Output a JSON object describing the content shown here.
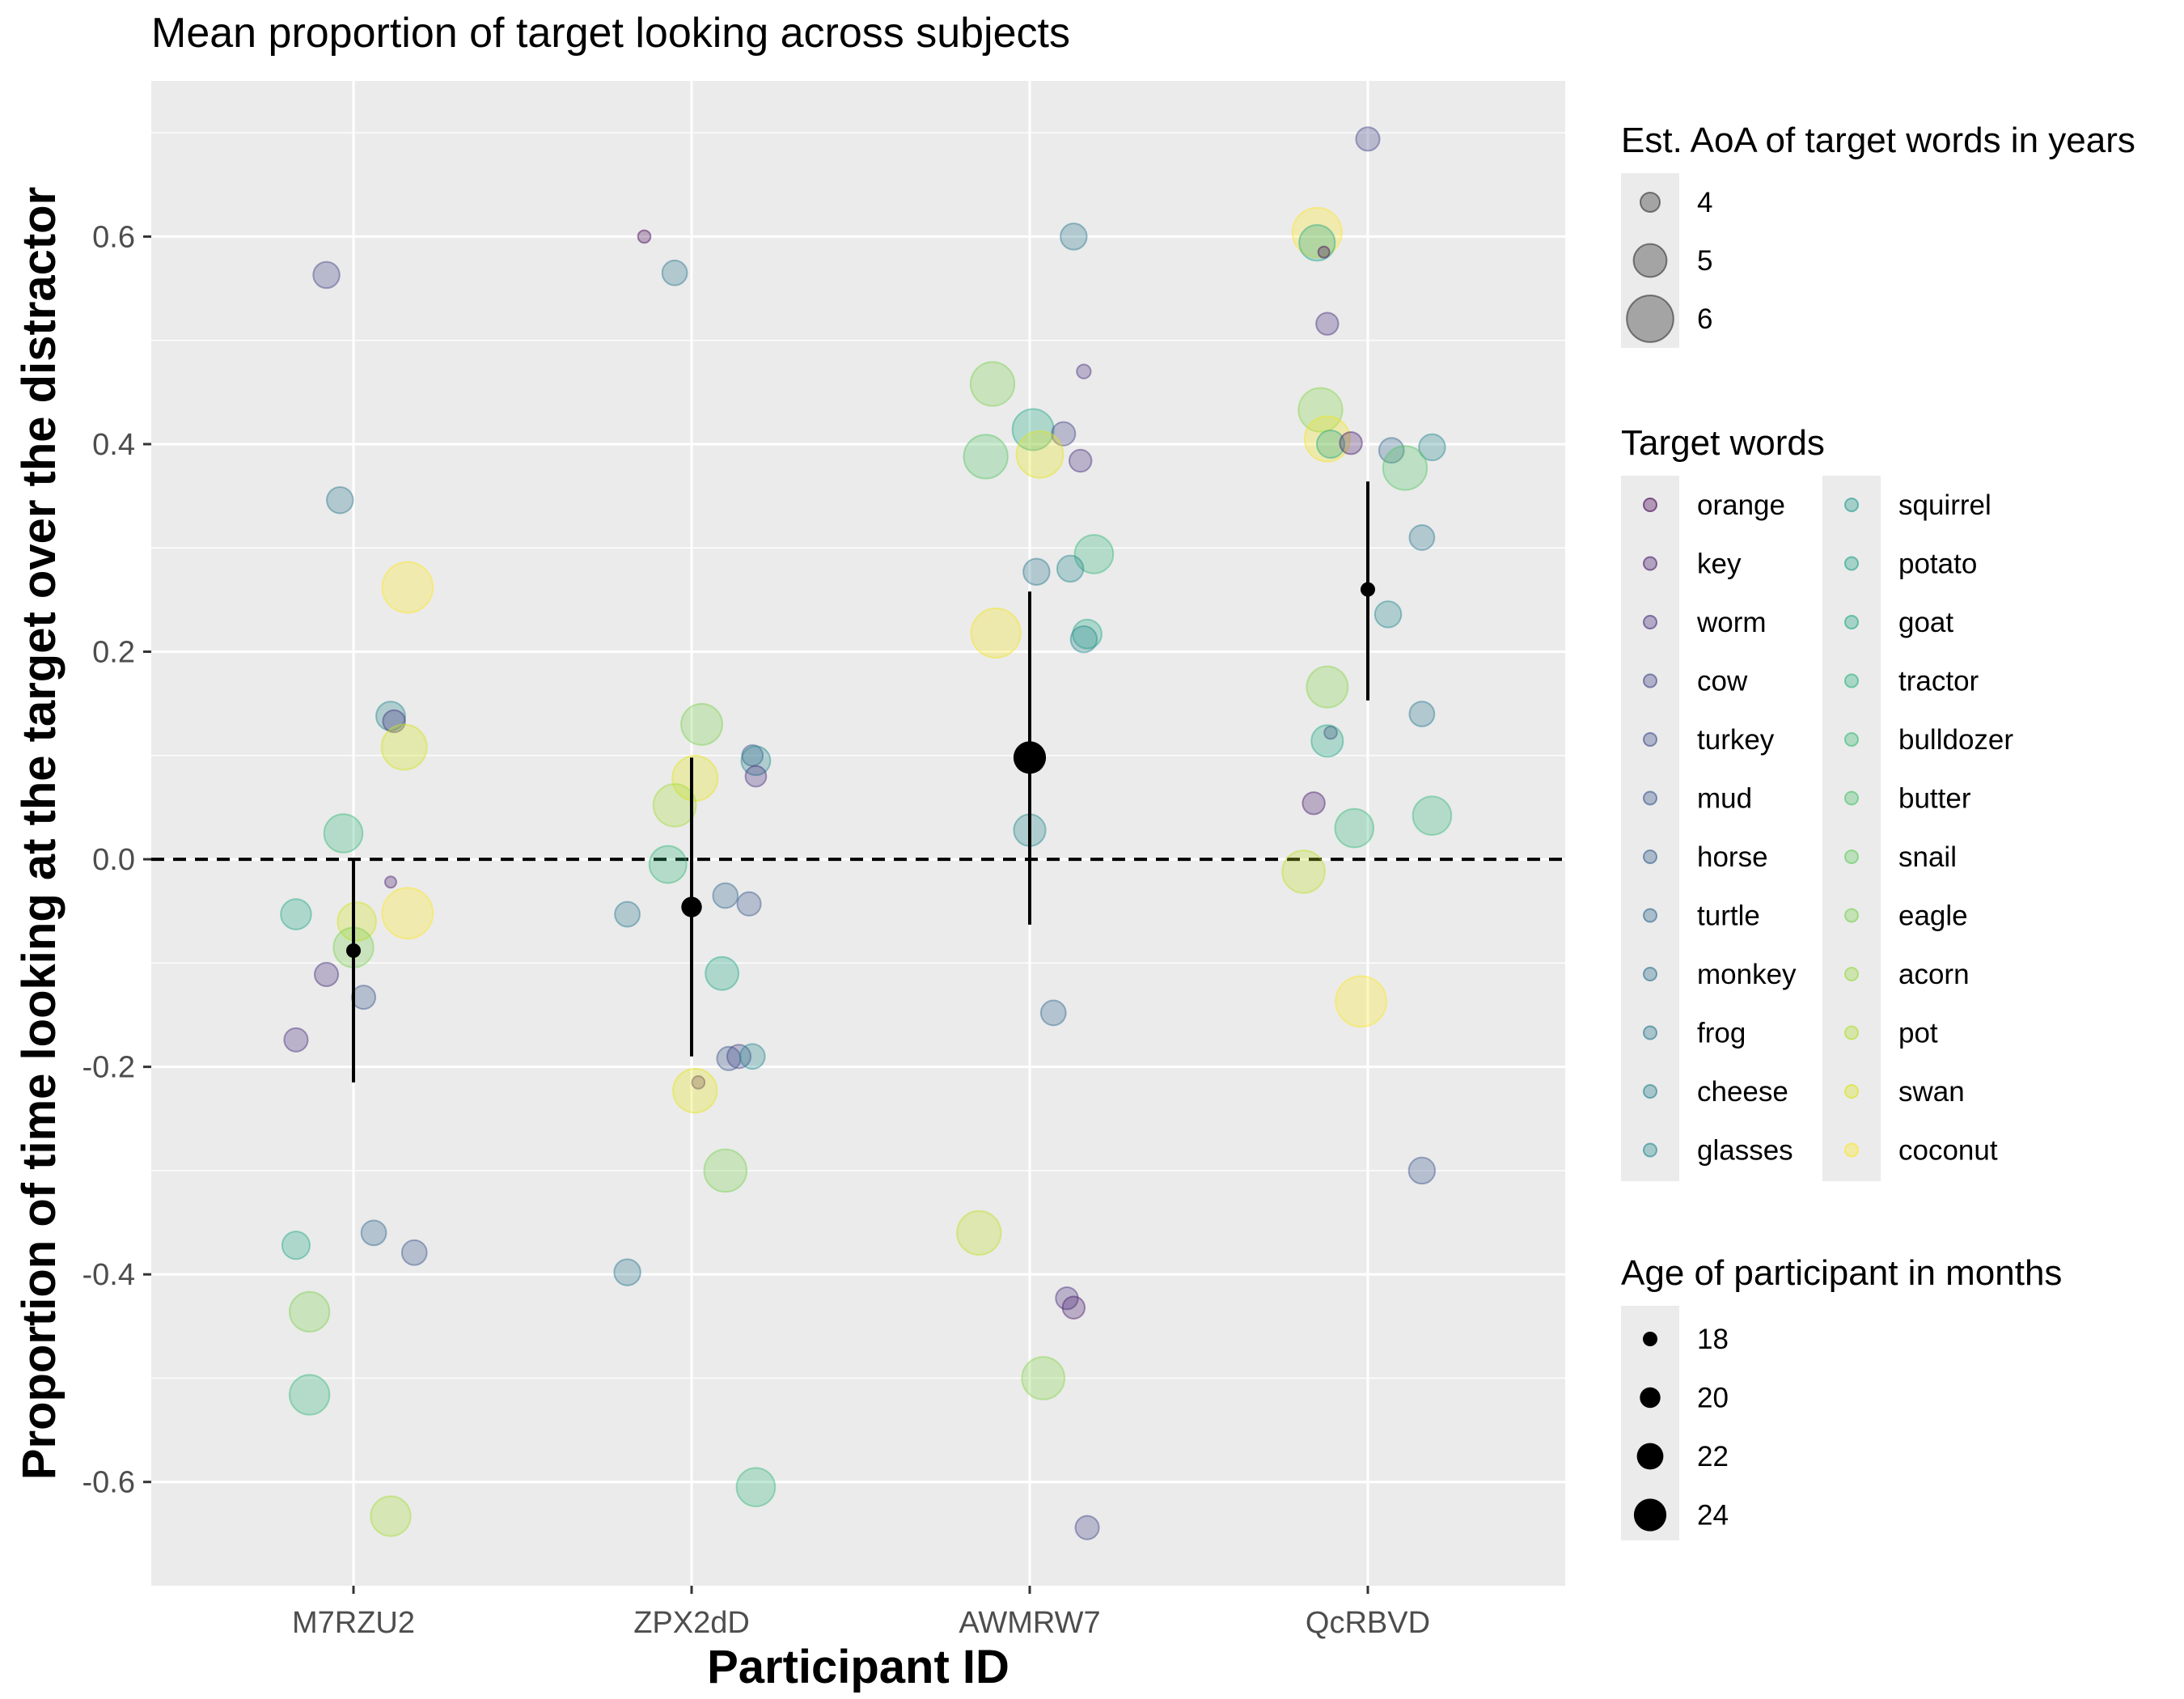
{
  "chart_data": {
    "type": "scatter",
    "title": "Mean proportion of target looking across subjects",
    "xlabel": "Participant ID",
    "ylabel": "Proportion of time looking at the target over the distractor",
    "categories": [
      "M7RZU2",
      "ZPX2dD",
      "AWMRW7",
      "QcRBVD"
    ],
    "ylim": [
      -0.7,
      0.75
    ],
    "yticks": [
      -0.6,
      -0.4,
      -0.2,
      0.0,
      0.2,
      0.4,
      0.6
    ],
    "ytick_labels": [
      "-0.6",
      "-0.4",
      "-0.2",
      "0.0",
      "0.2",
      "0.4",
      "0.6"
    ],
    "reference_line": {
      "y": 0,
      "style": "dashed"
    },
    "grid": true,
    "legend_position": "right",
    "word_colors": {
      "orange": "#440154",
      "key": "#481a6c",
      "worm": "#472f7d",
      "cow": "#414487",
      "turkey": "#39568c",
      "mud": "#31688e",
      "horse": "#2a788e",
      "turtle": "#23888e",
      "monkey": "#1f988b",
      "frog": "#22a884",
      "cheese": "#35b779",
      "glasses": "#54c568",
      "squirrel": "#7ad151",
      "potato": "#a5db36",
      "goat": "#d2e21b",
      "tractor": "#fde725",
      "bulldozer": "#7ad151",
      "butter": "#86d549",
      "snail": "#a5db36",
      "eagle": "#bddf26",
      "acorn": "#d2e21b",
      "pot": "#e5e419",
      "swan": "#f2e51d",
      "coconut": "#fde725"
    },
    "legends": {
      "aoa": {
        "title": "Est. AoA of target words in years",
        "values": [
          4,
          5,
          6
        ],
        "labels": [
          "4",
          "5",
          "6"
        ]
      },
      "words": {
        "title": "Target words",
        "col1": [
          "orange",
          "key",
          "worm",
          "cow",
          "turkey",
          "mud",
          "horse",
          "turtle",
          "monkey",
          "frog",
          "cheese",
          "glasses"
        ],
        "col1_colors": [
          "#440154",
          "#481a6c",
          "#472f7d",
          "#414487",
          "#3d4d8a",
          "#39568c",
          "#355f8d",
          "#31688e",
          "#2d708e",
          "#2a788e",
          "#26828e",
          "#23898e"
        ],
        "col2": [
          "squirrel",
          "potato",
          "goat",
          "tractor",
          "bulldozer",
          "butter",
          "snail",
          "eagle",
          "acorn",
          "pot",
          "swan",
          "coconut"
        ],
        "col2_colors": [
          "#1f9a8a",
          "#1fa187",
          "#22a884",
          "#2db27d",
          "#3bbb75",
          "#4ac16d",
          "#60ca60",
          "#7ad151",
          "#95d840",
          "#b0dd2f",
          "#d8e219",
          "#fde725"
        ]
      },
      "age": {
        "title": "Age of participant in months",
        "values": [
          18,
          20,
          22,
          24
        ],
        "labels": [
          "18",
          "20",
          "22",
          "24"
        ]
      }
    },
    "participants": [
      {
        "id": "M7RZU2",
        "mean": -0.088,
        "ymin": -0.215,
        "ymax": 0.0,
        "age_months": 18
      },
      {
        "id": "ZPX2dD",
        "mean": -0.046,
        "ymin": -0.19,
        "ymax": 0.098,
        "age_months": 20
      },
      {
        "id": "AWMRW7",
        "mean": 0.098,
        "ymin": -0.063,
        "ymax": 0.258,
        "age_months": 24
      },
      {
        "id": "QcRBVD",
        "mean": 0.26,
        "ymin": 0.153,
        "ymax": 0.364,
        "age_months": 18
      }
    ],
    "points": [
      {
        "p": 0,
        "dx": -0.08,
        "y": 0.563,
        "aoa": 4.6,
        "c": "#414487"
      },
      {
        "p": 0,
        "dx": -0.04,
        "y": 0.346,
        "aoa": 4.6,
        "c": "#2a788e"
      },
      {
        "p": 0,
        "dx": 0.16,
        "y": 0.262,
        "aoa": 6.4,
        "c": "#fde725"
      },
      {
        "p": 0,
        "dx": 0.11,
        "y": 0.138,
        "aoa": 4.8,
        "c": "#23888e"
      },
      {
        "p": 0,
        "dx": 0.12,
        "y": 0.133,
        "aoa": 4.3,
        "c": "#472f7d"
      },
      {
        "p": 0,
        "dx": 0.15,
        "y": 0.108,
        "aoa": 6.0,
        "c": "#d2e21b"
      },
      {
        "p": 0,
        "dx": -0.03,
        "y": 0.025,
        "aoa": 5.5,
        "c": "#35b779"
      },
      {
        "p": 0,
        "dx": 0.11,
        "y": -0.022,
        "aoa": 3.5,
        "c": "#481a6c"
      },
      {
        "p": 0,
        "dx": -0.17,
        "y": -0.053,
        "aoa": 4.9,
        "c": "#22a884"
      },
      {
        "p": 0,
        "dx": 0.16,
        "y": -0.052,
        "aoa": 6.4,
        "c": "#fde725"
      },
      {
        "p": 0,
        "dx": 0.01,
        "y": -0.06,
        "aoa": 5.5,
        "c": "#d2e21b"
      },
      {
        "p": 0,
        "dx": 0.0,
        "y": -0.085,
        "aoa": 5.6,
        "c": "#7ad151"
      },
      {
        "p": 0,
        "dx": -0.08,
        "y": -0.111,
        "aoa": 4.4,
        "c": "#472f7d"
      },
      {
        "p": 0,
        "dx": 0.03,
        "y": -0.133,
        "aoa": 4.4,
        "c": "#39568c"
      },
      {
        "p": 0,
        "dx": -0.17,
        "y": -0.174,
        "aoa": 4.4,
        "c": "#472f7d"
      },
      {
        "p": 0,
        "dx": 0.06,
        "y": -0.36,
        "aoa": 4.5,
        "c": "#31688e"
      },
      {
        "p": 0,
        "dx": 0.18,
        "y": -0.379,
        "aoa": 4.5,
        "c": "#39568c"
      },
      {
        "p": 0,
        "dx": -0.17,
        "y": -0.372,
        "aoa": 4.7,
        "c": "#22a884"
      },
      {
        "p": 0,
        "dx": -0.13,
        "y": -0.436,
        "aoa": 5.6,
        "c": "#7ad151"
      },
      {
        "p": 0,
        "dx": -0.13,
        "y": -0.516,
        "aoa": 5.6,
        "c": "#35b779"
      },
      {
        "p": 0,
        "dx": 0.11,
        "y": -0.633,
        "aoa": 5.6,
        "c": "#a5db36"
      },
      {
        "p": 1,
        "dx": -0.14,
        "y": 0.6,
        "aoa": 3.6,
        "c": "#440154"
      },
      {
        "p": 1,
        "dx": -0.05,
        "y": 0.565,
        "aoa": 4.5,
        "c": "#2a788e"
      },
      {
        "p": 1,
        "dx": 0.03,
        "y": 0.13,
        "aoa": 5.7,
        "c": "#7ad151"
      },
      {
        "p": 1,
        "dx": 0.18,
        "y": 0.1,
        "aoa": 4.2,
        "c": "#39568c"
      },
      {
        "p": 1,
        "dx": 0.19,
        "y": 0.095,
        "aoa": 4.8,
        "c": "#23888e"
      },
      {
        "p": 1,
        "dx": 0.19,
        "y": 0.08,
        "aoa": 4.2,
        "c": "#472f7d"
      },
      {
        "p": 1,
        "dx": 0.01,
        "y": 0.078,
        "aoa": 6.0,
        "c": "#e5e419"
      },
      {
        "p": 1,
        "dx": -0.05,
        "y": 0.052,
        "aoa": 5.8,
        "c": "#a5db36"
      },
      {
        "p": 1,
        "dx": -0.07,
        "y": -0.005,
        "aoa": 5.4,
        "c": "#35b779"
      },
      {
        "p": 1,
        "dx": -0.19,
        "y": -0.053,
        "aoa": 4.5,
        "c": "#2a788e"
      },
      {
        "p": 1,
        "dx": 0.1,
        "y": -0.035,
        "aoa": 4.5,
        "c": "#31688e"
      },
      {
        "p": 1,
        "dx": 0.17,
        "y": -0.043,
        "aoa": 4.4,
        "c": "#39568c"
      },
      {
        "p": 1,
        "dx": 0.09,
        "y": -0.11,
        "aoa": 5.1,
        "c": "#22a884"
      },
      {
        "p": 1,
        "dx": 0.11,
        "y": -0.192,
        "aoa": 4.4,
        "c": "#39568c"
      },
      {
        "p": 1,
        "dx": 0.14,
        "y": -0.19,
        "aoa": 4.4,
        "c": "#414487"
      },
      {
        "p": 1,
        "dx": 0.18,
        "y": -0.19,
        "aoa": 4.5,
        "c": "#23888e"
      },
      {
        "p": 1,
        "dx": 0.02,
        "y": -0.215,
        "aoa": 3.6,
        "c": "#481a6c"
      },
      {
        "p": 1,
        "dx": 0.01,
        "y": -0.223,
        "aoa": 5.9,
        "c": "#e5e419"
      },
      {
        "p": 1,
        "dx": 0.1,
        "y": -0.3,
        "aoa": 5.8,
        "c": "#7ad151"
      },
      {
        "p": 1,
        "dx": -0.19,
        "y": -0.398,
        "aoa": 4.6,
        "c": "#2a788e"
      },
      {
        "p": 1,
        "dx": 0.19,
        "y": -0.605,
        "aoa": 5.5,
        "c": "#35b779"
      },
      {
        "p": 2,
        "dx": 0.13,
        "y": 0.6,
        "aoa": 4.6,
        "c": "#2a788e"
      },
      {
        "p": 2,
        "dx": 0.16,
        "y": 0.47,
        "aoa": 3.7,
        "c": "#472f7d"
      },
      {
        "p": 2,
        "dx": -0.11,
        "y": 0.458,
        "aoa": 5.9,
        "c": "#7ad151"
      },
      {
        "p": 2,
        "dx": 0.01,
        "y": 0.414,
        "aoa": 5.7,
        "c": "#22a884"
      },
      {
        "p": 2,
        "dx": 0.1,
        "y": 0.41,
        "aoa": 4.4,
        "c": "#414487"
      },
      {
        "p": 2,
        "dx": -0.13,
        "y": 0.388,
        "aoa": 5.9,
        "c": "#54c568"
      },
      {
        "p": 2,
        "dx": 0.03,
        "y": 0.39,
        "aoa": 6.1,
        "c": "#e5e419"
      },
      {
        "p": 2,
        "dx": 0.15,
        "y": 0.384,
        "aoa": 4.3,
        "c": "#472f7d"
      },
      {
        "p": 2,
        "dx": 0.19,
        "y": 0.294,
        "aoa": 5.5,
        "c": "#35b779"
      },
      {
        "p": 2,
        "dx": 0.02,
        "y": 0.277,
        "aoa": 4.6,
        "c": "#2a788e"
      },
      {
        "p": 2,
        "dx": 0.12,
        "y": 0.28,
        "aoa": 4.6,
        "c": "#23888e"
      },
      {
        "p": 2,
        "dx": 0.17,
        "y": 0.217,
        "aoa": 4.8,
        "c": "#22a884"
      },
      {
        "p": 2,
        "dx": 0.16,
        "y": 0.212,
        "aoa": 4.6,
        "c": "#23888e"
      },
      {
        "p": 2,
        "dx": -0.1,
        "y": 0.218,
        "aoa": 6.3,
        "c": "#f2e51d"
      },
      {
        "p": 2,
        "dx": 0.0,
        "y": 0.028,
        "aoa": 5.0,
        "c": "#23888e"
      },
      {
        "p": 2,
        "dx": 0.07,
        "y": -0.148,
        "aoa": 4.5,
        "c": "#31688e"
      },
      {
        "p": 2,
        "dx": -0.15,
        "y": -0.36,
        "aoa": 5.9,
        "c": "#bddf26"
      },
      {
        "p": 2,
        "dx": 0.11,
        "y": -0.423,
        "aoa": 4.3,
        "c": "#472f7d"
      },
      {
        "p": 2,
        "dx": 0.13,
        "y": -0.432,
        "aoa": 4.3,
        "c": "#481a6c"
      },
      {
        "p": 2,
        "dx": 0.04,
        "y": -0.5,
        "aoa": 5.8,
        "c": "#86d549"
      },
      {
        "p": 2,
        "dx": 0.17,
        "y": -0.644,
        "aoa": 4.4,
        "c": "#414487"
      },
      {
        "p": 3,
        "dx": 0.0,
        "y": 0.694,
        "aoa": 4.4,
        "c": "#414487"
      },
      {
        "p": 3,
        "dx": -0.15,
        "y": 0.604,
        "aoa": 6.3,
        "c": "#fde725"
      },
      {
        "p": 3,
        "dx": -0.15,
        "y": 0.594,
        "aoa": 5.3,
        "c": "#22a884"
      },
      {
        "p": 3,
        "dx": -0.13,
        "y": 0.585,
        "aoa": 3.5,
        "c": "#440154"
      },
      {
        "p": 3,
        "dx": -0.12,
        "y": 0.516,
        "aoa": 4.3,
        "c": "#472f7d"
      },
      {
        "p": 3,
        "dx": -0.14,
        "y": 0.433,
        "aoa": 5.9,
        "c": "#86d549"
      },
      {
        "p": 3,
        "dx": -0.12,
        "y": 0.405,
        "aoa": 6.0,
        "c": "#f2e51d"
      },
      {
        "p": 3,
        "dx": -0.11,
        "y": 0.4,
        "aoa": 4.7,
        "c": "#22a884"
      },
      {
        "p": 3,
        "dx": -0.05,
        "y": 0.401,
        "aoa": 4.3,
        "c": "#481a6c"
      },
      {
        "p": 3,
        "dx": 0.07,
        "y": 0.394,
        "aoa": 4.5,
        "c": "#31688e"
      },
      {
        "p": 3,
        "dx": 0.19,
        "y": 0.397,
        "aoa": 4.6,
        "c": "#23888e"
      },
      {
        "p": 3,
        "dx": 0.11,
        "y": 0.377,
        "aoa": 5.9,
        "c": "#54c568"
      },
      {
        "p": 3,
        "dx": 0.16,
        "y": 0.31,
        "aoa": 4.5,
        "c": "#2a788e"
      },
      {
        "p": 3,
        "dx": 0.06,
        "y": 0.236,
        "aoa": 4.6,
        "c": "#23888e"
      },
      {
        "p": 3,
        "dx": -0.12,
        "y": 0.166,
        "aoa": 5.7,
        "c": "#86d549"
      },
      {
        "p": 3,
        "dx": 0.16,
        "y": 0.14,
        "aoa": 4.5,
        "c": "#2a788e"
      },
      {
        "p": 3,
        "dx": -0.11,
        "y": 0.122,
        "aoa": 3.6,
        "c": "#472f7d"
      },
      {
        "p": 3,
        "dx": -0.12,
        "y": 0.114,
        "aoa": 5.0,
        "c": "#22a884"
      },
      {
        "p": 3,
        "dx": -0.16,
        "y": 0.054,
        "aoa": 4.3,
        "c": "#481a6c"
      },
      {
        "p": 3,
        "dx": -0.04,
        "y": 0.03,
        "aoa": 5.5,
        "c": "#35b779"
      },
      {
        "p": 3,
        "dx": 0.19,
        "y": 0.042,
        "aoa": 5.5,
        "c": "#35b779"
      },
      {
        "p": 3,
        "dx": -0.19,
        "y": -0.012,
        "aoa": 5.8,
        "c": "#bddf26"
      },
      {
        "p": 3,
        "dx": -0.02,
        "y": -0.137,
        "aoa": 6.4,
        "c": "#fde725"
      },
      {
        "p": 3,
        "dx": 0.16,
        "y": -0.3,
        "aoa": 4.6,
        "c": "#39568c"
      }
    ]
  }
}
